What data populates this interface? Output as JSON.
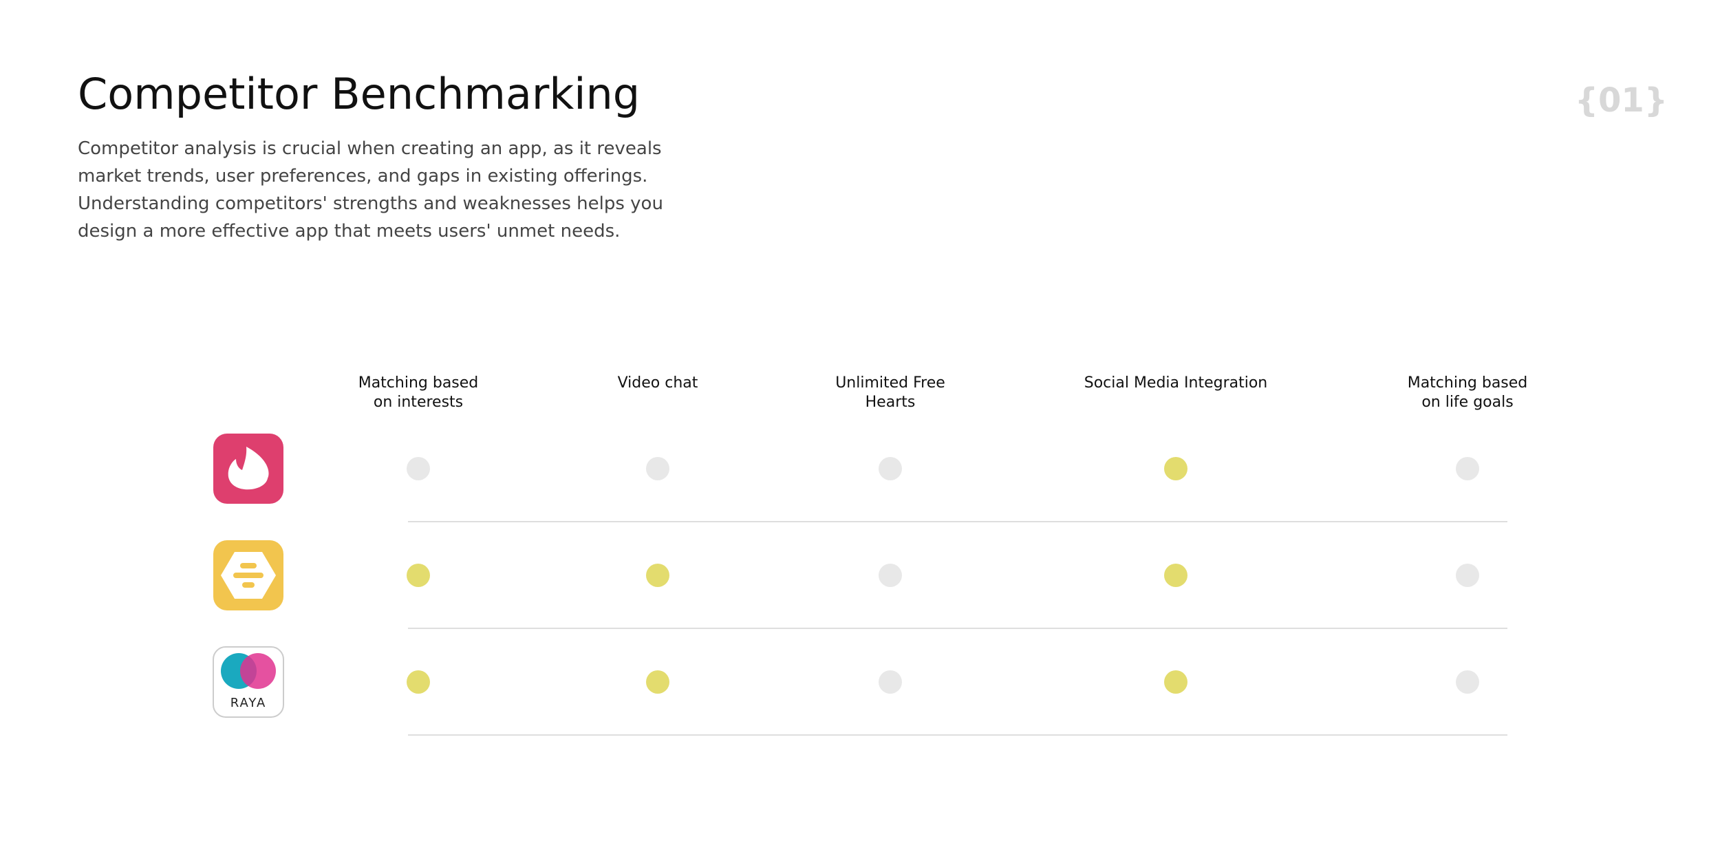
{
  "header": {
    "title": "Competitor Benchmarking",
    "description": [
      "Competitor analysis is crucial when creating an app, as it reveals",
      "market trends, user preferences, and gaps in existing offerings.",
      "Understanding competitors' strengths and weaknesses helps you",
      "design a more effective app that meets users' unmet needs."
    ],
    "page_number": "{01}"
  },
  "table": {
    "columns": [
      [
        "Matching based",
        "on interests"
      ],
      [
        "Video chat"
      ],
      [
        "Unlimited Free",
        "Hearts"
      ],
      [
        "Social Media Integration"
      ],
      [
        "Matching based",
        "on life goals"
      ]
    ],
    "rows": [
      {
        "icon": "tinder",
        "features": [
          false,
          false,
          false,
          true,
          false
        ]
      },
      {
        "icon": "bumble",
        "features": [
          true,
          true,
          false,
          true,
          false
        ]
      },
      {
        "icon": "raya",
        "icon_label": "RAYA",
        "features": [
          true,
          true,
          false,
          true,
          false
        ]
      }
    ],
    "colors": {
      "yes": "#e3dc6e",
      "no": "#e8e8e8"
    }
  }
}
